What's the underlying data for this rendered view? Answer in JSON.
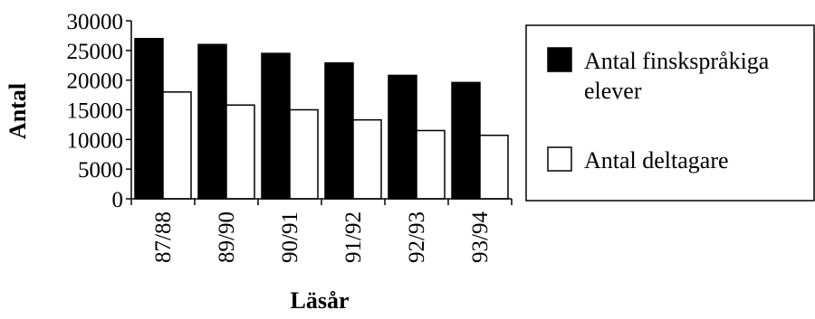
{
  "chart_data": {
    "type": "bar",
    "title": "",
    "xlabel": "Läsår",
    "ylabel": "Antal",
    "categories": [
      "87/88",
      "89/90",
      "90/91",
      "91/92",
      "92/93",
      "93/94"
    ],
    "series": [
      {
        "name": "Antal finskspråkiga elever",
        "values": [
          27000,
          26000,
          24500,
          22900,
          20800,
          19600
        ],
        "color": "#000000"
      },
      {
        "name": "Antal deltagare",
        "values": [
          18000,
          15800,
          15000,
          13300,
          11500,
          10700
        ],
        "color": "#ffffff"
      }
    ],
    "ylim": [
      0,
      30000
    ],
    "yticks": [
      "0",
      "5000",
      "10000",
      "15000",
      "20000",
      "25000",
      "30000"
    ],
    "grid": false,
    "legend_position": "right",
    "legend": {
      "entries": [
        {
          "lines": [
            "Antal finskspråkiga",
            "elever"
          ],
          "color": "#000000"
        },
        {
          "lines": [
            "Antal deltagare"
          ],
          "color": "#ffffff"
        }
      ]
    }
  }
}
